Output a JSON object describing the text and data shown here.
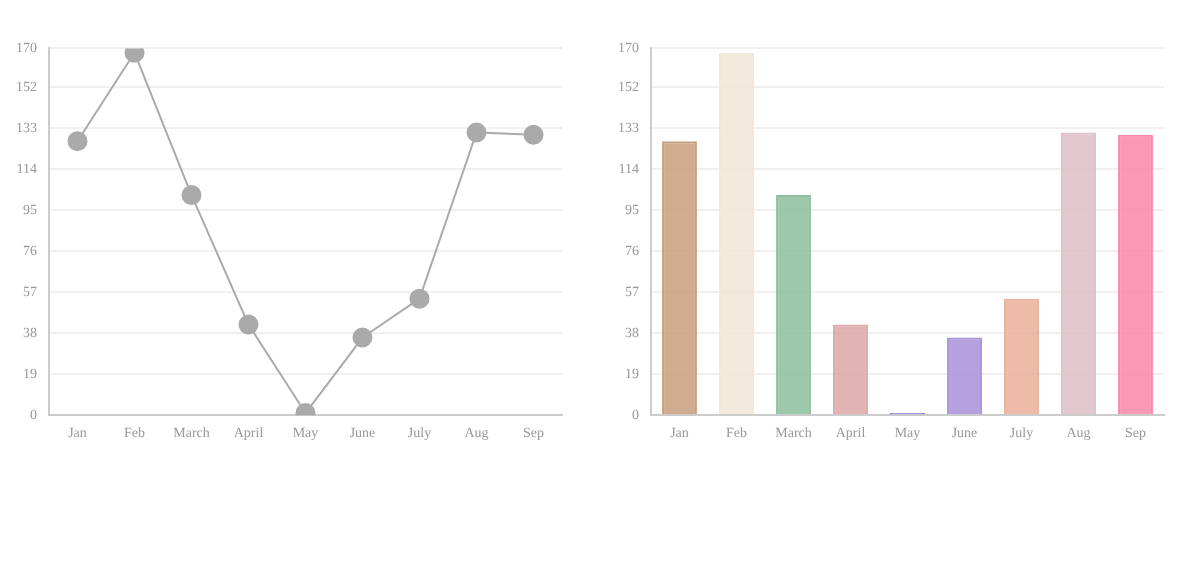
{
  "chart_data": [
    {
      "type": "line",
      "categories": [
        "Jan",
        "Feb",
        "March",
        "April",
        "May",
        "June",
        "July",
        "Aug",
        "Sep"
      ],
      "series": [
        {
          "color": "#aaaaaa",
          "values": [
            127,
            168,
            102,
            42,
            1,
            36,
            54,
            131,
            130
          ]
        }
      ],
      "ylim": [
        0,
        170
      ],
      "yticks": [
        0,
        19,
        38,
        57,
        76,
        95,
        114,
        133,
        152,
        170
      ],
      "grid": "y",
      "marker": "circle",
      "legend": false
    },
    {
      "type": "bar",
      "categories": [
        "Jan",
        "Feb",
        "March",
        "April",
        "May",
        "June",
        "July",
        "Aug",
        "Sep"
      ],
      "values": [
        127,
        168,
        102,
        42,
        1,
        36,
        54,
        131,
        130
      ],
      "colors": [
        "#c9a07e",
        "#efe6d6",
        "#8fbf9f",
        "#dca8a8",
        "#8a6ee0",
        "#a893d8",
        "#eab09a",
        "#dcc0c6",
        "#fa88a8"
      ],
      "ylim": [
        0,
        170
      ],
      "yticks": [
        0,
        19,
        38,
        57,
        76,
        95,
        114,
        133,
        152,
        170
      ],
      "grid": "y",
      "legend": false
    }
  ]
}
